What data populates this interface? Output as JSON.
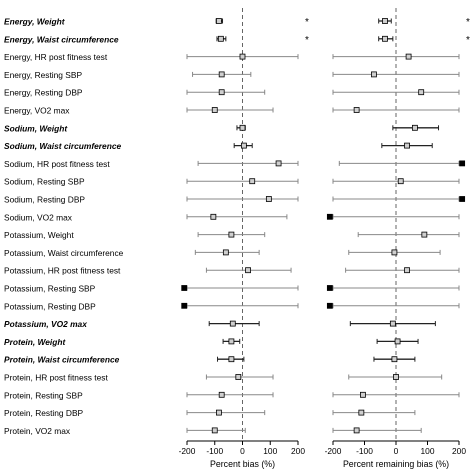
{
  "chart_data": [
    {
      "type": "forest",
      "xlabel": "Percent bias (%)",
      "xlim": [
        -200,
        200
      ],
      "xticks": [
        "-200",
        "-100",
        "0",
        "100",
        "200"
      ],
      "reference_line": 0,
      "rows": [
        {
          "label": "Energy, Weight",
          "bold": true,
          "estimate": -85,
          "lower": -95,
          "upper": -72,
          "marker": "open-square",
          "star": "*"
        },
        {
          "label": "Energy, Waist circumference",
          "bold": true,
          "estimate": -78,
          "lower": -92,
          "upper": -60,
          "marker": "open-square",
          "star": "*"
        },
        {
          "label": "Energy, HR post fitness test",
          "bold": false,
          "estimate": 0,
          "lower": -200,
          "upper": 200,
          "marker": "open-square",
          "star": ""
        },
        {
          "label": "Energy, Resting SBP",
          "bold": false,
          "estimate": -75,
          "lower": -180,
          "upper": 30,
          "marker": "open-square",
          "star": ""
        },
        {
          "label": "Energy, Resting DBP",
          "bold": false,
          "estimate": -75,
          "lower": -200,
          "upper": 80,
          "marker": "open-square",
          "star": ""
        },
        {
          "label": "Energy, VO2 max",
          "bold": false,
          "estimate": -100,
          "lower": -200,
          "upper": 110,
          "marker": "open-square",
          "star": ""
        },
        {
          "label": "Sodium, Weight",
          "bold": true,
          "estimate": 0,
          "lower": -20,
          "upper": 10,
          "marker": "open-square",
          "star": ""
        },
        {
          "label": "Sodium, Waist circumference",
          "bold": true,
          "estimate": 5,
          "lower": -30,
          "upper": 35,
          "marker": "open-square",
          "star": ""
        },
        {
          "label": "Sodium, HR post fitness test",
          "bold": false,
          "estimate": 130,
          "lower": -160,
          "upper": 200,
          "marker": "open-square",
          "star": ""
        },
        {
          "label": "Sodium, Resting SBP",
          "bold": false,
          "estimate": 35,
          "lower": -200,
          "upper": 200,
          "marker": "open-square",
          "star": ""
        },
        {
          "label": "Sodium, Resting DBP",
          "bold": false,
          "estimate": 95,
          "lower": -200,
          "upper": 200,
          "marker": "open-square",
          "star": ""
        },
        {
          "label": "Sodium, VO2 max",
          "bold": false,
          "estimate": -105,
          "lower": -200,
          "upper": 160,
          "marker": "open-square",
          "star": ""
        },
        {
          "label": "Potassium, Weight",
          "bold": false,
          "estimate": -40,
          "lower": -160,
          "upper": 80,
          "marker": "open-square",
          "star": ""
        },
        {
          "label": "Potassium, Waist circumference",
          "bold": false,
          "estimate": -60,
          "lower": -170,
          "upper": 60,
          "marker": "open-square",
          "star": ""
        },
        {
          "label": "Potassium, HR post fitness test",
          "bold": false,
          "estimate": 20,
          "lower": -130,
          "upper": 175,
          "marker": "open-square",
          "star": ""
        },
        {
          "label": "Potassium, Resting SBP",
          "bold": false,
          "estimate": -210,
          "lower": -200,
          "upper": 200,
          "marker": "filled-square",
          "star": ""
        },
        {
          "label": "Potassium, Resting DBP",
          "bold": false,
          "estimate": -210,
          "lower": -200,
          "upper": 200,
          "marker": "filled-square",
          "star": ""
        },
        {
          "label": "Potassium, VO2 max",
          "bold": true,
          "estimate": -35,
          "lower": -120,
          "upper": 60,
          "marker": "open-square",
          "star": ""
        },
        {
          "label": "Protein, Weight",
          "bold": true,
          "estimate": -40,
          "lower": -70,
          "upper": -10,
          "marker": "open-square",
          "star": ""
        },
        {
          "label": "Protein, Waist circumference",
          "bold": true,
          "estimate": -40,
          "lower": -90,
          "upper": 5,
          "marker": "open-square",
          "star": ""
        },
        {
          "label": "Protein, HR post fitness test",
          "bold": false,
          "estimate": -15,
          "lower": -130,
          "upper": 110,
          "marker": "open-square",
          "star": ""
        },
        {
          "label": "Protein, Resting SBP",
          "bold": false,
          "estimate": -75,
          "lower": -200,
          "upper": 110,
          "marker": "open-square",
          "star": ""
        },
        {
          "label": "Protein, Resting DBP",
          "bold": false,
          "estimate": -85,
          "lower": -200,
          "upper": 80,
          "marker": "open-square",
          "star": ""
        },
        {
          "label": "Protein, VO2 max",
          "bold": false,
          "estimate": -100,
          "lower": -200,
          "upper": 10,
          "marker": "open-square",
          "star": ""
        }
      ]
    },
    {
      "type": "forest",
      "xlabel": "Percent remaining bias (%)",
      "xlim": [
        -200,
        200
      ],
      "xticks": [
        "-200",
        "-100",
        "0",
        "100",
        "200"
      ],
      "reference_line": 0,
      "rows": [
        {
          "estimate": -35,
          "lower": -55,
          "upper": -15,
          "marker": "open-square",
          "star": "*"
        },
        {
          "estimate": -35,
          "lower": -55,
          "upper": -10,
          "marker": "open-square",
          "star": "*"
        },
        {
          "estimate": 40,
          "lower": -200,
          "upper": 200,
          "marker": "open-square",
          "star": ""
        },
        {
          "estimate": -70,
          "lower": -200,
          "upper": 200,
          "marker": "open-square",
          "star": ""
        },
        {
          "estimate": 80,
          "lower": -200,
          "upper": 200,
          "marker": "open-square",
          "star": ""
        },
        {
          "estimate": -125,
          "lower": -200,
          "upper": 200,
          "marker": "open-square",
          "star": ""
        },
        {
          "estimate": 60,
          "lower": -10,
          "upper": 135,
          "marker": "open-square",
          "star": ""
        },
        {
          "estimate": 35,
          "lower": -45,
          "upper": 115,
          "marker": "open-square",
          "star": ""
        },
        {
          "estimate": 210,
          "lower": -180,
          "upper": 200,
          "marker": "filled-square",
          "star": ""
        },
        {
          "estimate": 15,
          "lower": -200,
          "upper": 200,
          "marker": "open-square",
          "star": ""
        },
        {
          "estimate": 210,
          "lower": -200,
          "upper": 200,
          "marker": "filled-square",
          "star": ""
        },
        {
          "estimate": -210,
          "lower": -200,
          "upper": 200,
          "marker": "filled-square",
          "star": ""
        },
        {
          "estimate": 90,
          "lower": -120,
          "upper": 200,
          "marker": "open-square",
          "star": ""
        },
        {
          "estimate": -5,
          "lower": -150,
          "upper": 140,
          "marker": "open-square",
          "star": ""
        },
        {
          "estimate": 35,
          "lower": -160,
          "upper": 200,
          "marker": "open-square",
          "star": ""
        },
        {
          "estimate": -210,
          "lower": -200,
          "upper": 200,
          "marker": "filled-square",
          "star": ""
        },
        {
          "estimate": -210,
          "lower": -200,
          "upper": 200,
          "marker": "filled-square",
          "star": ""
        },
        {
          "estimate": -10,
          "lower": -145,
          "upper": 125,
          "marker": "open-square",
          "star": ""
        },
        {
          "estimate": 5,
          "lower": -60,
          "upper": 70,
          "marker": "open-square",
          "star": ""
        },
        {
          "estimate": -5,
          "lower": -70,
          "upper": 60,
          "marker": "open-square",
          "star": ""
        },
        {
          "estimate": 0,
          "lower": -150,
          "upper": 145,
          "marker": "open-square",
          "star": ""
        },
        {
          "estimate": -105,
          "lower": -200,
          "upper": 200,
          "marker": "open-square",
          "star": ""
        },
        {
          "estimate": -110,
          "lower": -200,
          "upper": 60,
          "marker": "open-square",
          "star": ""
        },
        {
          "estimate": -125,
          "lower": -200,
          "upper": 80,
          "marker": "open-square",
          "star": ""
        }
      ]
    }
  ],
  "colors": {
    "ci_line_bold": "#222222",
    "ci_line_normal": "#888888",
    "marker_fill_open": "#cfcfcf",
    "marker_fill_filled": "#000000",
    "reference_line": "#555555",
    "axis": "#000000",
    "text": "#000000"
  }
}
